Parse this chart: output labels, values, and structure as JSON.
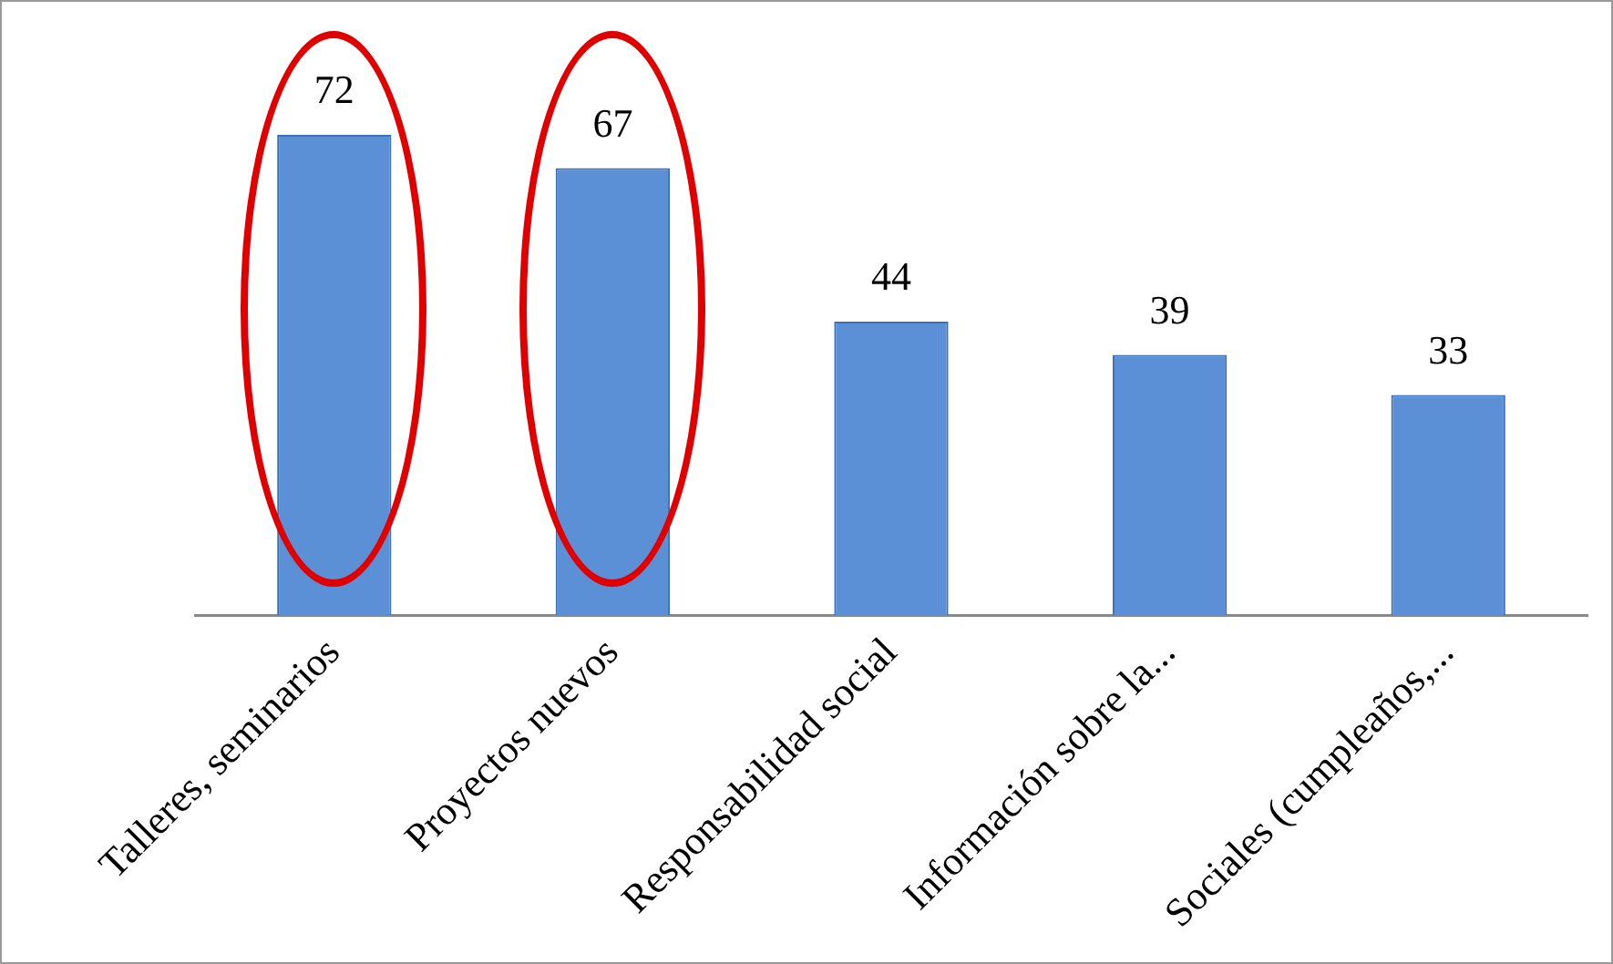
{
  "chart_data": {
    "type": "bar",
    "categories": [
      "Talleres, seminarios",
      "Proyectos nuevos",
      "Responsabilidad social",
      "Información sobre la...",
      "Sociales (cumpleaños,..."
    ],
    "values": [
      72,
      67,
      44,
      39,
      33
    ],
    "color": "#5b8fd6",
    "data_labels": true,
    "legend": false,
    "grid": false
  }
}
